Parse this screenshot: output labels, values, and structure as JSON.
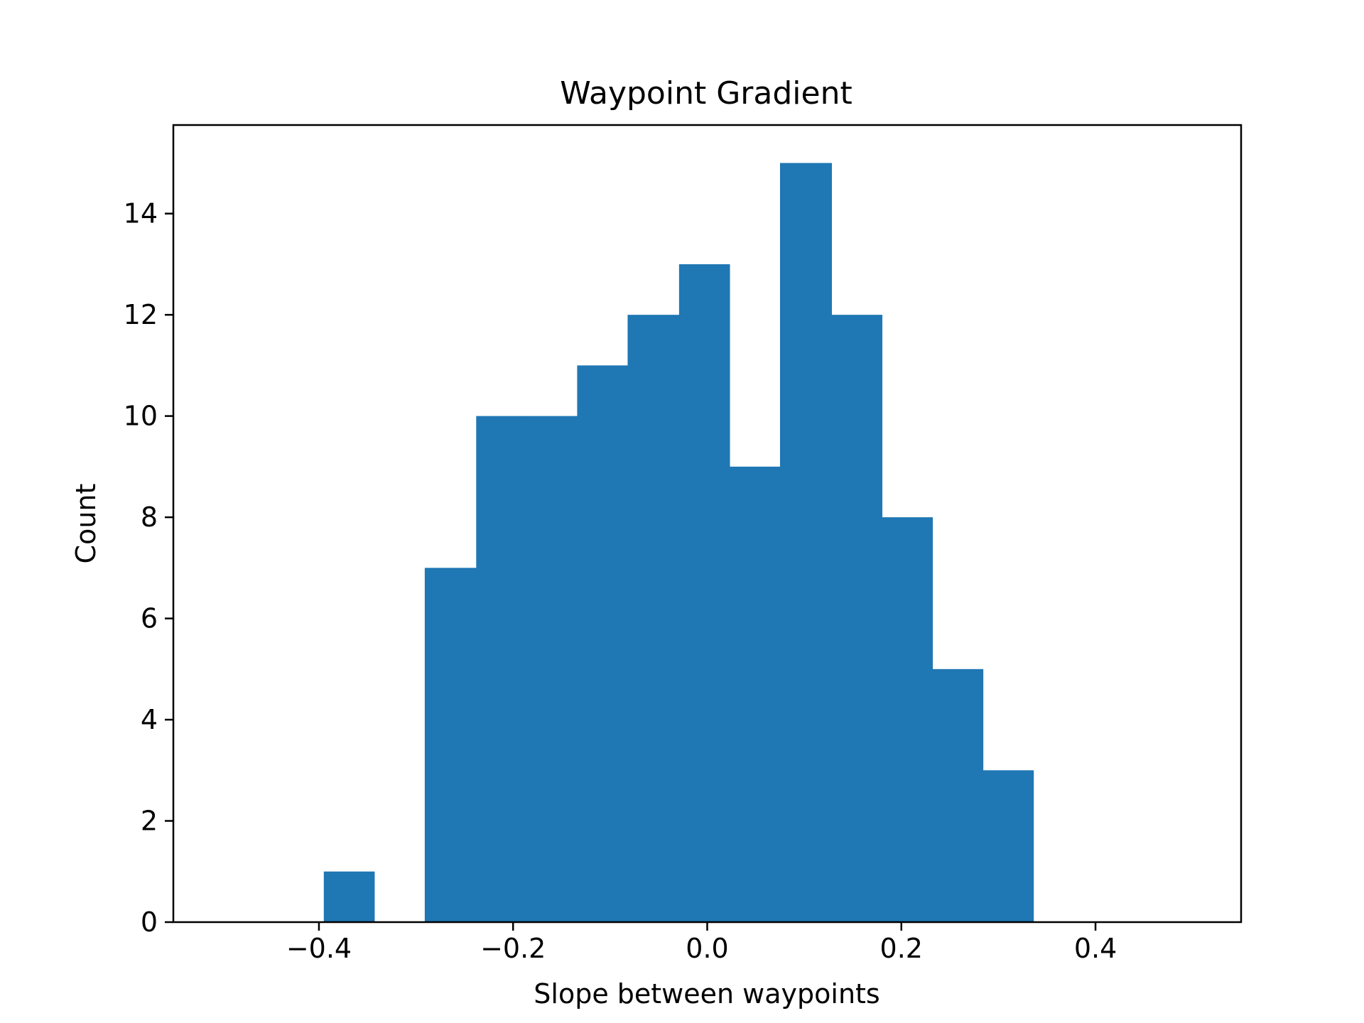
{
  "chart_data": {
    "type": "bar",
    "title": "Waypoint Gradient",
    "xlabel": "Slope between waypoints",
    "ylabel": "Count",
    "xlim": [
      -0.55,
      0.55
    ],
    "ylim": [
      0,
      15.75
    ],
    "x_ticks": [
      -0.4,
      -0.2,
      0.0,
      0.2,
      0.4
    ],
    "x_tick_labels": [
      "−0.4",
      "−0.2",
      "0.0",
      "0.2",
      "0.4"
    ],
    "y_ticks": [
      0,
      2,
      4,
      6,
      8,
      10,
      12,
      14
    ],
    "y_tick_labels": [
      "0",
      "2",
      "4",
      "6",
      "8",
      "10",
      "12",
      "14"
    ],
    "bin_edges": [
      -0.395,
      -0.343,
      -0.291,
      -0.238,
      -0.186,
      -0.134,
      -0.082,
      -0.029,
      0.023,
      0.075,
      0.128,
      0.18,
      0.232,
      0.284,
      0.336
    ],
    "counts": [
      1,
      0,
      7,
      10,
      10,
      11,
      12,
      13,
      9,
      15,
      12,
      8,
      5,
      3
    ],
    "bar_color": "#1f77b4",
    "grid": false,
    "legend": "none"
  }
}
